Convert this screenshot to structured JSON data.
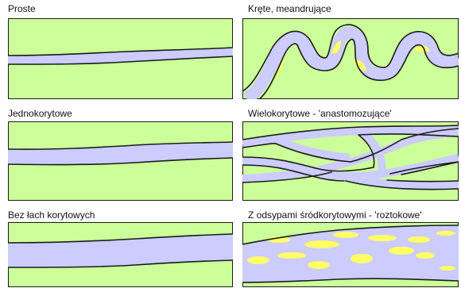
{
  "colors": {
    "floodplain": "#ccff99",
    "water": "#ccccff",
    "bar": "#ffff66",
    "outline": "#1a1a1a"
  },
  "panels": [
    {
      "id": "straight",
      "label": "Proste"
    },
    {
      "id": "meandering",
      "label": "Kręte, meandrujące"
    },
    {
      "id": "single-channel",
      "label": "Jednokorytowe"
    },
    {
      "id": "anastomosing",
      "label": "Wielokorytowe - 'anastomozujące'"
    },
    {
      "id": "no-bars",
      "label": "Bez łach korytowych"
    },
    {
      "id": "braided",
      "label": "Z odsypami śródkorytowymi - 'roztokowe'"
    }
  ]
}
